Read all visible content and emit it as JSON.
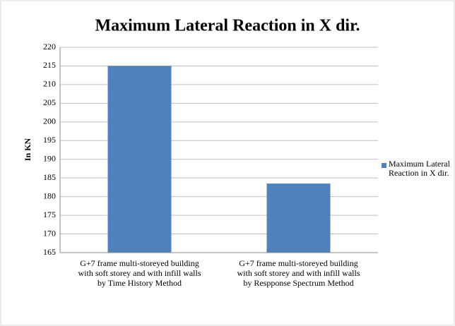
{
  "chart_data": {
    "type": "bar",
    "title": "Maximum Lateral Reaction in X dir.",
    "y_label": "In KN",
    "categories": [
      [
        "G+7 frame multi-storeyed building",
        "with soft storey and with infill walls",
        "by Time History Method"
      ],
      [
        "G+7 frame multi-storeyed building",
        "with soft storey and with infill walls",
        "by Respponse Spectrum Method"
      ]
    ],
    "series": [
      {
        "name": "Maximum Lateral Reaction in X dir.",
        "color": "#4f81bd",
        "values": [
          215,
          183.5
        ]
      }
    ],
    "ylim": [
      165,
      220
    ],
    "yticks": [
      165,
      170,
      175,
      180,
      185,
      190,
      195,
      200,
      205,
      210,
      215,
      220
    ],
    "grid": true,
    "legend": "right"
  }
}
